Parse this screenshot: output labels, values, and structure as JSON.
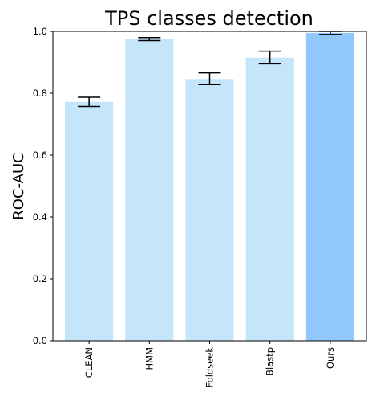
{
  "chart_data": {
    "type": "bar",
    "title": "TPS classes detection",
    "xlabel": "",
    "ylabel": "ROC-AUC",
    "categories": [
      "CLEAN",
      "HMM",
      "Foldseek",
      "Blastp",
      "Ours"
    ],
    "values": [
      0.772,
      0.975,
      0.846,
      0.915,
      0.995
    ],
    "error_low": [
      0.757,
      0.97,
      0.828,
      0.895,
      0.99
    ],
    "error_high": [
      0.787,
      0.98,
      0.866,
      0.936,
      1.0
    ],
    "ylim": [
      0,
      1.0
    ],
    "yticks": [
      0.0,
      0.2,
      0.4,
      0.6,
      0.8,
      1.0
    ],
    "ytick_labels": [
      "0.0",
      "0.2",
      "0.4",
      "0.6",
      "0.8",
      "1.0"
    ],
    "grid": false,
    "colors": {
      "baseline": "#c5e5fa",
      "highlight": "#90c8fe",
      "errorbar": "#000000",
      "axis": "#000000"
    },
    "highlight_category": "Ours"
  }
}
